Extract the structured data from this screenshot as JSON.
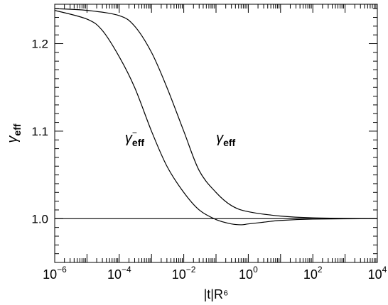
{
  "chart_data": {
    "type": "line",
    "xscale": "log",
    "xlim": [
      1e-06,
      10000.0
    ],
    "ylim": [
      0.95,
      1.245
    ],
    "xlabel": "|t|R⁶",
    "ylabel": "γ_eff",
    "x_tick_labels": [
      {
        "x": 1e-06,
        "base": "10",
        "exp": "−6"
      },
      {
        "x": 0.0001,
        "base": "10",
        "exp": "−4"
      },
      {
        "x": 0.01,
        "base": "10",
        "exp": "−2"
      },
      {
        "x": 1,
        "base": "10",
        "exp": "0"
      },
      {
        "x": 100.0,
        "base": "10",
        "exp": "2"
      },
      {
        "x": 10000.0,
        "base": "10",
        "exp": "4"
      }
    ],
    "y_ticks": [
      1.0,
      1.1,
      1.2
    ],
    "y_tick_labels": [
      "1.0",
      "1.1",
      "1.2"
    ],
    "grid": false,
    "series": [
      {
        "name": "γ_eff",
        "label": {
          "base": "γ",
          "sub": "eff",
          "sup": "",
          "at": [
            0.2,
            1.095
          ]
        },
        "x": [
          1e-06,
          1e-05,
          0.0001,
          0.0003,
          0.001,
          0.003,
          0.01,
          0.03,
          0.1,
          0.3,
          1,
          10,
          100,
          10000.0
        ],
        "y": [
          1.24,
          1.238,
          1.232,
          1.22,
          1.19,
          1.15,
          1.1,
          1.055,
          1.03,
          1.015,
          1.008,
          1.003,
          1.001,
          1.0
        ]
      },
      {
        "name": "γ_eff⁻",
        "label": {
          "base": "γ",
          "sub": "eff",
          "sup": "−",
          "at": [
            0.0003,
            1.095
          ]
        },
        "x": [
          1e-06,
          1e-05,
          3e-05,
          0.0001,
          0.0003,
          0.001,
          0.003,
          0.01,
          0.03,
          0.1,
          0.3,
          0.6,
          1,
          3,
          10,
          100,
          10000.0
        ],
        "y": [
          1.238,
          1.228,
          1.215,
          1.185,
          1.15,
          1.1,
          1.06,
          1.03,
          1.01,
          0.999,
          0.994,
          0.993,
          0.994,
          0.996,
          0.998,
          0.9995,
          1.0
        ]
      },
      {
        "name": "reference",
        "x": [
          1e-06,
          10000.0
        ],
        "y": [
          1.0,
          1.0
        ]
      }
    ]
  }
}
